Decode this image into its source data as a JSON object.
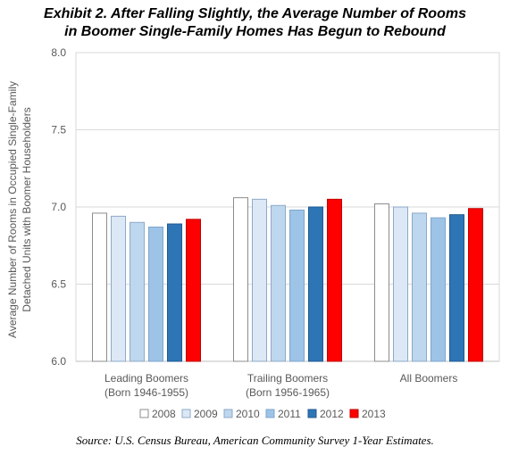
{
  "title": {
    "line1": "Exhibit 2. After Falling Slightly, the Average Number of Rooms",
    "line2": "in Boomer Single-Family Homes Has Begun to Rebound"
  },
  "source": "Source: U.S. Census Bureau, American Community Survey 1-Year Estimates.",
  "chart_data": {
    "type": "bar",
    "title": "Exhibit 2. After Falling Slightly, the Average Number of Rooms in Boomer Single-Family Homes Has Begun to Rebound",
    "ylabel_lines": [
      "Average Number of Rooms in Occupied Single-Family",
      "Detached Units with Boomer Householders"
    ],
    "xlabel": "",
    "ylim": [
      6.0,
      8.0
    ],
    "yticks": [
      "6.0",
      "6.5",
      "7.0",
      "7.5",
      "8.0"
    ],
    "ytick_values": [
      6.0,
      6.5,
      7.0,
      7.5,
      8.0
    ],
    "grid": true,
    "legend_position": "bottom",
    "categories": [
      [
        "Leading Boomers",
        "(Born 1946-1955)"
      ],
      [
        "Trailing Boomers",
        "(Born 1956-1965)"
      ],
      [
        "All Boomers"
      ]
    ],
    "series": [
      {
        "name": "2008",
        "color": "#ffffff",
        "stroke": "#8c8c8c",
        "values": [
          6.96,
          7.06,
          7.02
        ]
      },
      {
        "name": "2009",
        "color": "#dce8f6",
        "stroke": "#8ea9c8",
        "values": [
          6.94,
          7.05,
          7.0
        ]
      },
      {
        "name": "2010",
        "color": "#bdd7ee",
        "stroke": "#8ea9c8",
        "values": [
          6.9,
          7.01,
          6.96
        ]
      },
      {
        "name": "2011",
        "color": "#9dc3e6",
        "stroke": "#7fa6cc",
        "values": [
          6.87,
          6.98,
          6.93
        ]
      },
      {
        "name": "2012",
        "color": "#2e75b6",
        "stroke": "#1f5a90",
        "values": [
          6.89,
          7.0,
          6.95
        ]
      },
      {
        "name": "2013",
        "color": "#ff0000",
        "stroke": "#c00000",
        "values": [
          6.92,
          7.05,
          6.99
        ]
      }
    ]
  }
}
